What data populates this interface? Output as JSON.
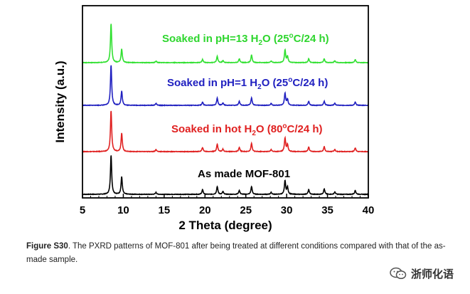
{
  "chart_data": {
    "type": "line",
    "xlabel": "2 Theta (degree)",
    "ylabel": "Intensity (a.u.)",
    "xlim": [
      5,
      40
    ],
    "xticks": [
      5,
      10,
      15,
      20,
      25,
      30,
      35,
      40
    ],
    "grid": false,
    "legend": "inline labels above each trace",
    "series": [
      {
        "name": "As made MOF-801",
        "color": "#000000",
        "peaks": [
          [
            8.5,
            1.0
          ],
          [
            9.8,
            0.45
          ],
          [
            14.0,
            0.05
          ],
          [
            19.7,
            0.12
          ],
          [
            21.5,
            0.2
          ],
          [
            22.2,
            0.07
          ],
          [
            24.2,
            0.1
          ],
          [
            25.7,
            0.2
          ],
          [
            28.1,
            0.05
          ],
          [
            29.8,
            0.35
          ],
          [
            30.1,
            0.18
          ],
          [
            32.7,
            0.12
          ],
          [
            34.6,
            0.14
          ],
          [
            35.9,
            0.06
          ],
          [
            38.4,
            0.1
          ]
        ]
      },
      {
        "name": "Soaked in hot H2O (80°C/24 h)",
        "color": "#e02020",
        "peaks": [
          [
            8.5,
            1.0
          ],
          [
            9.8,
            0.45
          ],
          [
            14.0,
            0.05
          ],
          [
            19.7,
            0.1
          ],
          [
            21.5,
            0.18
          ],
          [
            22.2,
            0.06
          ],
          [
            24.2,
            0.1
          ],
          [
            25.7,
            0.2
          ],
          [
            28.1,
            0.05
          ],
          [
            29.8,
            0.33
          ],
          [
            30.1,
            0.17
          ],
          [
            32.7,
            0.11
          ],
          [
            34.6,
            0.12
          ],
          [
            35.9,
            0.05
          ],
          [
            38.4,
            0.09
          ]
        ]
      },
      {
        "name": "Soaked in pH=1 H2O (25°C/24 h)",
        "color": "#2020c0",
        "peaks": [
          [
            8.5,
            1.0
          ],
          [
            9.8,
            0.35
          ],
          [
            14.0,
            0.05
          ],
          [
            19.7,
            0.08
          ],
          [
            21.5,
            0.18
          ],
          [
            22.2,
            0.06
          ],
          [
            24.2,
            0.1
          ],
          [
            25.7,
            0.19
          ],
          [
            28.1,
            0.05
          ],
          [
            29.8,
            0.3
          ],
          [
            30.1,
            0.15
          ],
          [
            32.7,
            0.1
          ],
          [
            34.6,
            0.1
          ],
          [
            35.9,
            0.05
          ],
          [
            38.4,
            0.08
          ]
        ]
      },
      {
        "name": "Soaked in pH=13 H2O (25°C/24 h)",
        "color": "#30e030",
        "peaks": [
          [
            8.5,
            1.0
          ],
          [
            9.8,
            0.35
          ],
          [
            14.0,
            0.04
          ],
          [
            19.7,
            0.08
          ],
          [
            21.5,
            0.16
          ],
          [
            22.2,
            0.05
          ],
          [
            24.2,
            0.1
          ],
          [
            25.7,
            0.2
          ],
          [
            28.1,
            0.04
          ],
          [
            29.8,
            0.32
          ],
          [
            30.1,
            0.16
          ],
          [
            32.7,
            0.1
          ],
          [
            34.6,
            0.1
          ],
          [
            35.9,
            0.05
          ],
          [
            38.4,
            0.08
          ]
        ]
      }
    ],
    "labels": [
      {
        "series": 0,
        "parts": [
          "As made MOF-801"
        ]
      },
      {
        "series": 1,
        "parts": [
          "Soaked in hot H",
          "2",
          "O (80",
          "o",
          "C/24 h)"
        ]
      },
      {
        "series": 2,
        "parts": [
          "Soaked in pH=1 H",
          "2",
          "O (25",
          "o",
          "C/24 h)"
        ]
      },
      {
        "series": 3,
        "parts": [
          "Soaked in pH=13 H",
          "2",
          "O (25",
          "o",
          "C/24 h)"
        ]
      }
    ]
  },
  "caption": {
    "figure_label": "Figure S30",
    "text": ". The PXRD patterns of MOF-801 after being treated at different conditions compared with that of the as-made sample."
  },
  "watermark": {
    "text": "浙师化语",
    "icon": "wechat-icon"
  }
}
